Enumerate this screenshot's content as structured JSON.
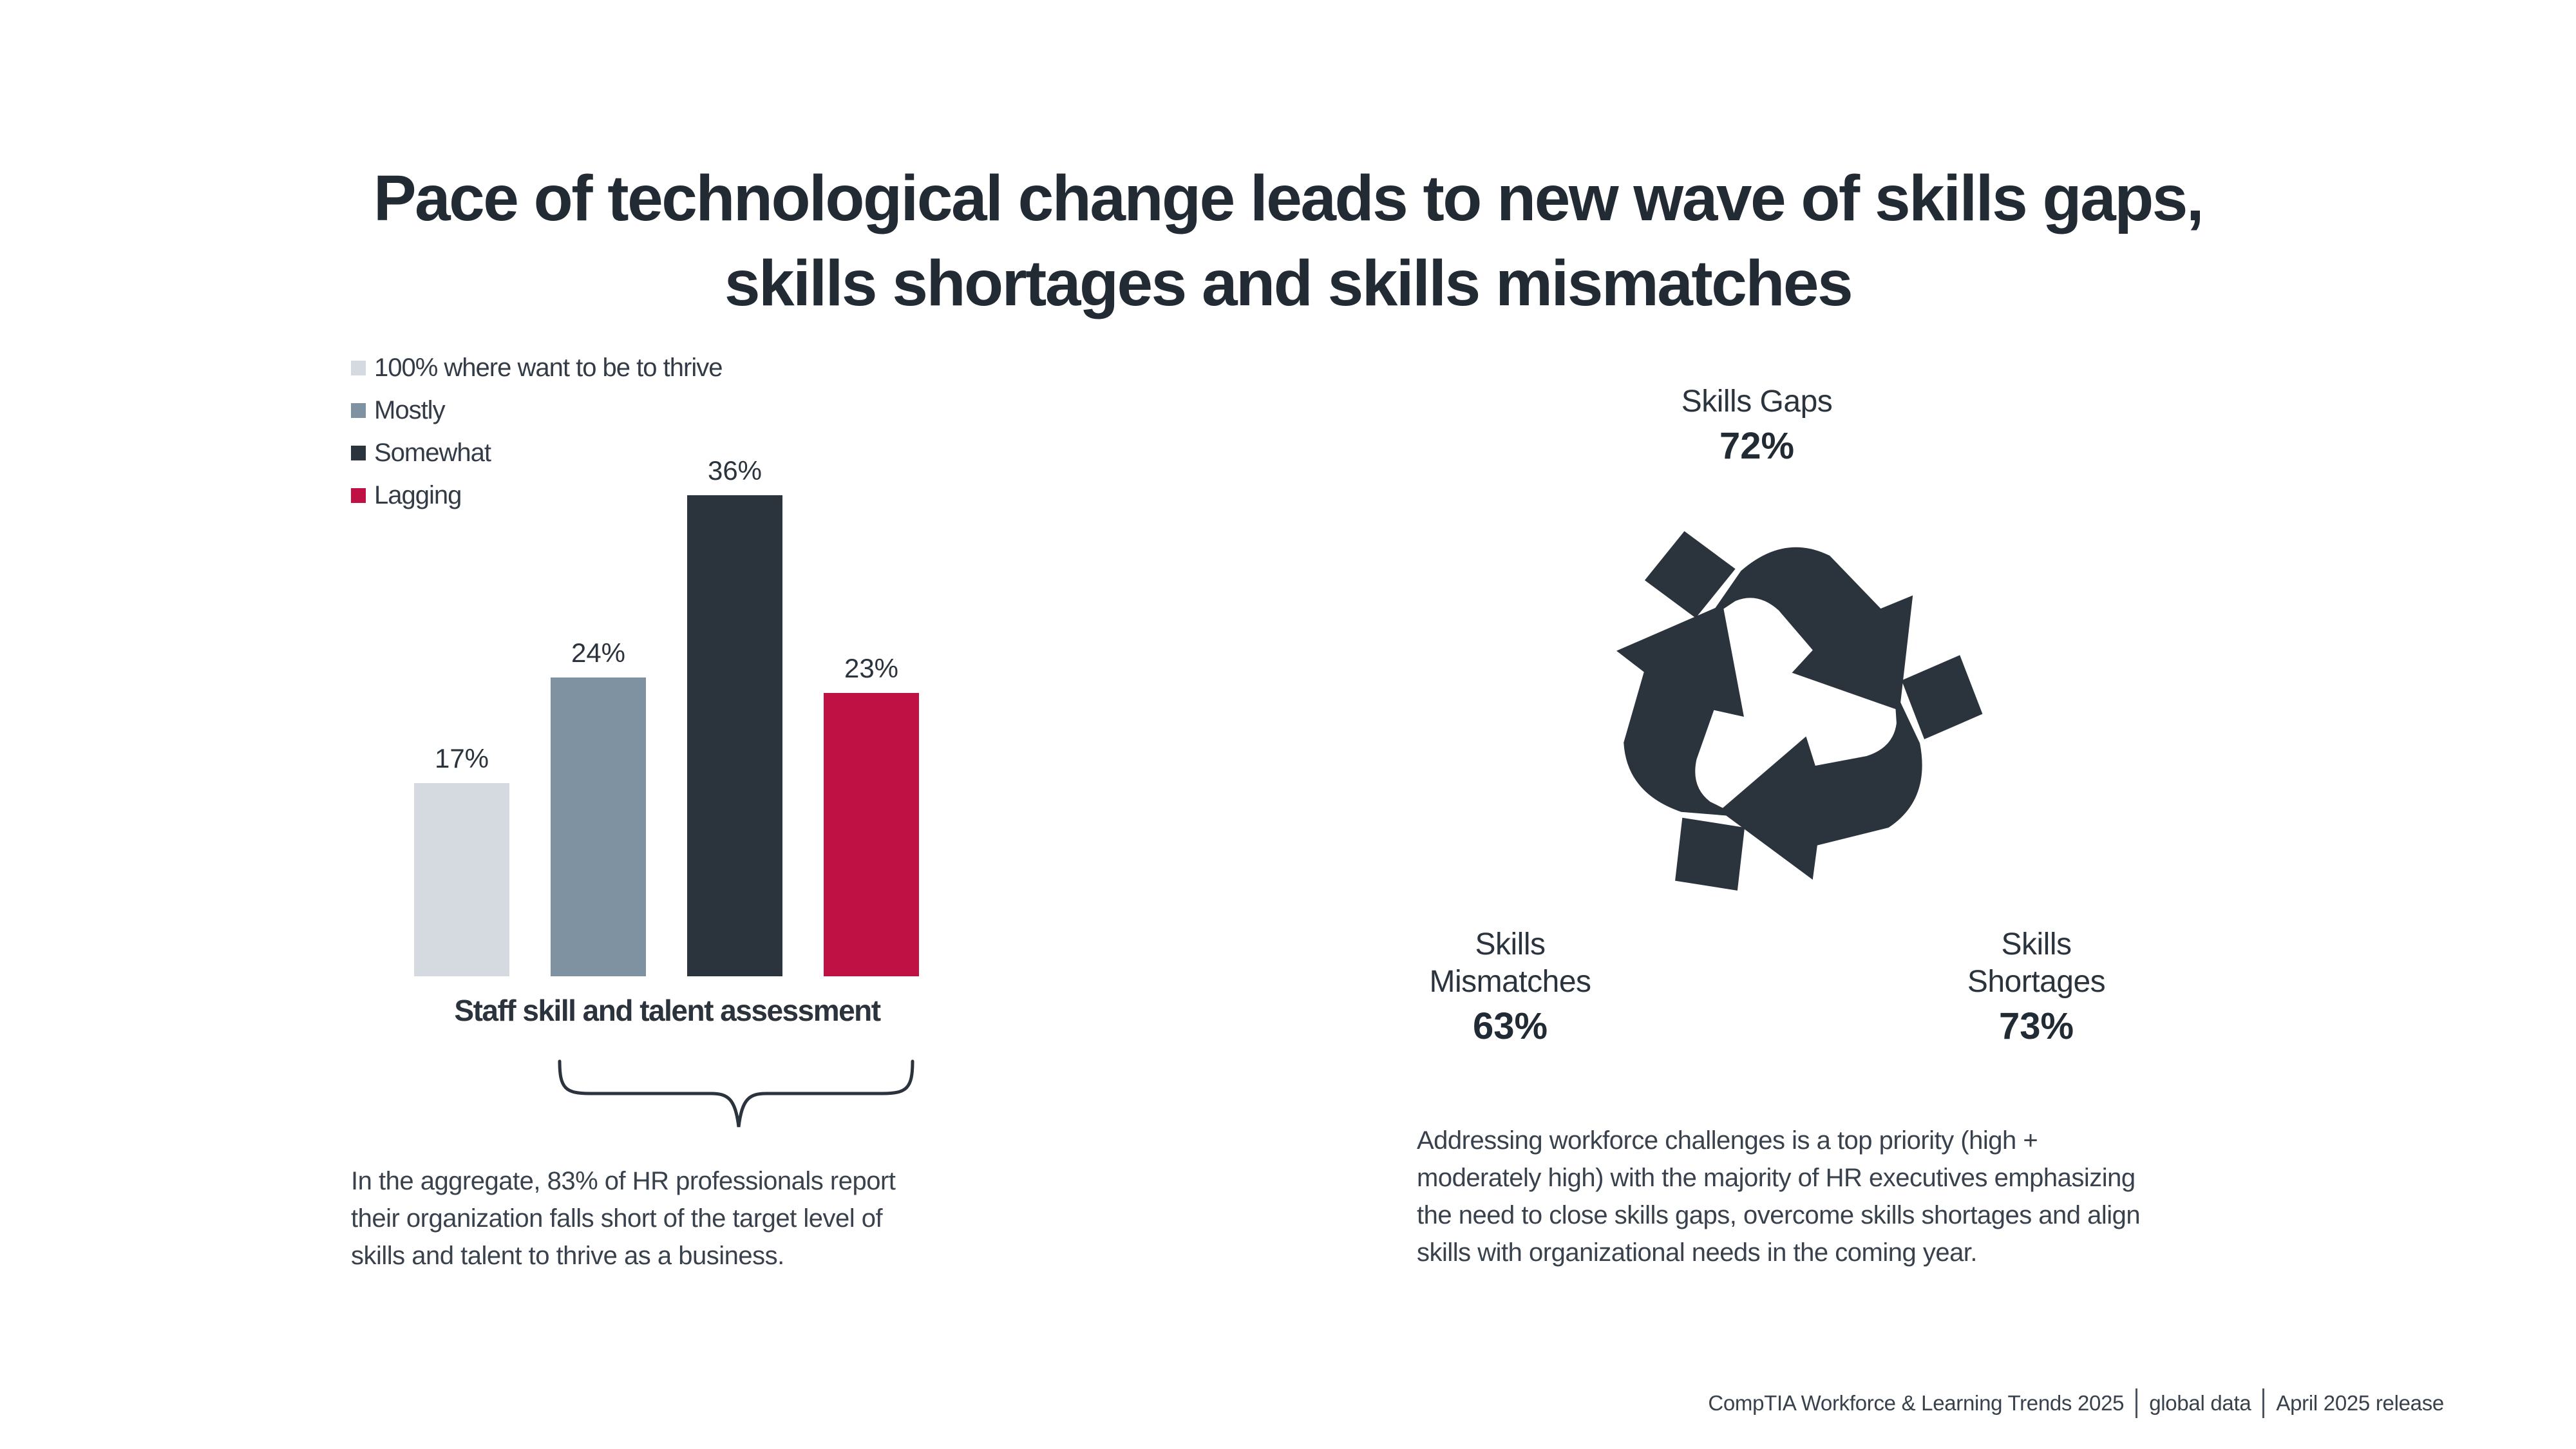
{
  "title": {
    "lines": [
      "Pace of technological change leads to new wave of skills gaps,",
      "skills shortages and skills mismatches"
    ]
  },
  "chart_data": {
    "type": "bar",
    "categories": [
      "100% where want to be to thrive",
      "Mostly",
      "Somewhat",
      "Lagging"
    ],
    "values": [
      17,
      24,
      36,
      23
    ],
    "data_labels": [
      "17%",
      "24%",
      "36%",
      "23%"
    ],
    "colors": [
      "#d5d9e0",
      "#7e92a2",
      "#2b333d",
      "#c01144"
    ],
    "title": "",
    "xlabel": "Staff skill and talent assessment",
    "ylabel": "",
    "ylim": [
      0,
      40
    ],
    "grid": false,
    "legend_position": "top-left",
    "annotation": "brace under Mostly + Somewhat + Lagging bars (sums to 83%)"
  },
  "left_note": {
    "lines": [
      "In the aggregate, 83% of HR professionals report",
      "their organization falls short of the target level of",
      "skills and talent to thrive as a business."
    ]
  },
  "cycle": {
    "icon": "recycle-icon",
    "color": "#2b333d",
    "items": [
      {
        "label": "Skills Gaps",
        "value": "72%"
      },
      {
        "label": "Skills Mismatches",
        "value": "63%"
      },
      {
        "label": "Skills Shortages",
        "value": "73%"
      }
    ]
  },
  "right_note": {
    "lines": [
      "Addressing workforce challenges is a top priority (high +",
      "moderately high) with the majority of HR executives emphasizing",
      "the need to close skills gaps, overcome skills shortages and align",
      "skills with organizational needs in the coming year."
    ]
  },
  "footer": {
    "segments": [
      "CompTIA Workforce & Learning Trends 2025",
      "global data",
      "April 2025 release"
    ]
  }
}
